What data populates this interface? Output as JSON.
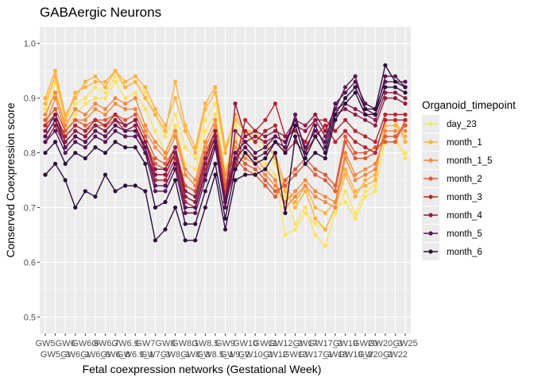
{
  "chart_data": {
    "type": "line",
    "title": "GABAergic Neurons",
    "xlabel": "Fetal coexpression networks (Gestational Week)",
    "ylabel": "Conserved Coexpression score",
    "ylim": [
      0.47,
      1.03
    ],
    "yticks": [
      0.5,
      0.6,
      0.7,
      0.8,
      0.9,
      1.0
    ],
    "ytick_labels": [
      "0.5",
      "0.6",
      "0.7",
      "0.8",
      "0.9",
      "1.0"
    ],
    "grid": true,
    "legend_position": "right",
    "legend_title": "Organoid_timepoint",
    "x_tick_labels": [
      "GW5",
      "GW5_3",
      "GW6",
      "GW6_1",
      "GW6.6",
      "GW6_6",
      "GW6.7",
      "GW6_8",
      "GW6.9",
      "GW6.9_1",
      "GW7",
      "GW7_3",
      "GW8",
      "GW8_1",
      "GW8.1",
      "GW8_3",
      "GW8.5",
      "GW8.5_1",
      "GW9",
      "GW9_2",
      "GW10",
      "GW10_2",
      "GW11",
      "GW12",
      "GW12_2",
      "GW13",
      "GW17",
      "GW17_1",
      "GW17_2",
      "GW18",
      "GW19",
      "GW19_2",
      "GW20",
      "GW20_2",
      "GW20_3",
      "GW22",
      "GW25"
    ],
    "x_tick_rows": [
      "GW5",
      "GW5_3",
      "GW6",
      "GW6_1",
      "GW6.6",
      "GW6_6",
      "GW6.7",
      "GW6_8",
      "GW6.9",
      "GW6.9_1",
      "GW7",
      "GW7_3",
      "GW8",
      "GW8_1",
      "GW8.1",
      "GW8_3",
      "GW8.5",
      "GW8.5_1",
      "GW9",
      "GW9_2",
      "GW10",
      "GW10_2",
      "GW11",
      "GW12",
      "GW12_2",
      "GW13",
      "GW17",
      "GW17_1",
      "GW17_2",
      "GW18",
      "GW19",
      "GW19_2",
      "GW20",
      "GW20_2",
      "GW20_3",
      "GW22",
      "GW25"
    ],
    "series": [
      {
        "name": "day_23",
        "color": "#FDE262",
        "lines": [
          [
            0.88,
            0.94,
            0.86,
            0.89,
            0.9,
            0.92,
            0.91,
            0.94,
            0.92,
            0.93,
            0.91,
            0.87,
            0.83,
            0.87,
            0.81,
            0.79,
            0.86,
            0.89,
            0.8,
            0.85,
            0.83,
            0.82,
            0.8,
            0.78,
            0.72,
            0.67,
            0.7,
            0.65,
            0.63,
            0.69,
            0.73,
            0.69,
            0.73,
            0.74,
            0.82,
            0.82,
            0.8
          ],
          [
            0.86,
            0.93,
            0.84,
            0.87,
            0.89,
            0.9,
            0.9,
            0.93,
            0.9,
            0.91,
            0.88,
            0.84,
            0.8,
            0.85,
            0.78,
            0.77,
            0.84,
            0.87,
            0.77,
            0.83,
            0.81,
            0.79,
            0.78,
            0.76,
            0.65,
            0.66,
            0.69,
            0.67,
            0.66,
            0.7,
            0.71,
            0.68,
            0.72,
            0.73,
            0.83,
            0.83,
            0.79
          ]
        ]
      },
      {
        "name": "month_1",
        "color": "#FDB241",
        "lines": [
          [
            0.9,
            0.95,
            0.87,
            0.9,
            0.93,
            0.94,
            0.92,
            0.95,
            0.93,
            0.94,
            0.92,
            0.88,
            0.85,
            0.9,
            0.84,
            0.8,
            0.88,
            0.91,
            0.8,
            0.87,
            0.84,
            0.83,
            0.82,
            0.79,
            0.73,
            0.7,
            0.73,
            0.68,
            0.66,
            0.7,
            0.76,
            0.72,
            0.75,
            0.76,
            0.85,
            0.85,
            0.83
          ],
          [
            0.89,
            0.94,
            0.86,
            0.91,
            0.92,
            0.93,
            0.93,
            0.95,
            0.92,
            0.93,
            0.9,
            0.87,
            0.84,
            0.93,
            0.85,
            0.81,
            0.89,
            0.92,
            0.81,
            0.86,
            0.84,
            0.84,
            0.81,
            0.8,
            0.74,
            0.71,
            0.74,
            0.7,
            0.69,
            0.71,
            0.77,
            0.73,
            0.74,
            0.75,
            0.86,
            0.86,
            0.82
          ]
        ]
      },
      {
        "name": "month_1_5",
        "color": "#F48A3E",
        "lines": [
          [
            0.87,
            0.91,
            0.85,
            0.88,
            0.87,
            0.89,
            0.88,
            0.9,
            0.89,
            0.9,
            0.85,
            0.82,
            0.8,
            0.84,
            0.77,
            0.75,
            0.82,
            0.86,
            0.76,
            0.82,
            0.8,
            0.79,
            0.77,
            0.75,
            0.7,
            0.72,
            0.74,
            0.72,
            0.71,
            0.7,
            0.79,
            0.75,
            0.76,
            0.77,
            0.84,
            0.84,
            0.84
          ],
          [
            0.85,
            0.9,
            0.84,
            0.86,
            0.86,
            0.88,
            0.87,
            0.89,
            0.88,
            0.88,
            0.84,
            0.81,
            0.79,
            0.83,
            0.76,
            0.74,
            0.81,
            0.85,
            0.75,
            0.81,
            0.79,
            0.78,
            0.76,
            0.74,
            0.71,
            0.73,
            0.75,
            0.73,
            0.72,
            0.71,
            0.8,
            0.76,
            0.77,
            0.78,
            0.83,
            0.83,
            0.85
          ]
        ]
      },
      {
        "name": "month_2",
        "color": "#E05B36",
        "lines": [
          [
            0.86,
            0.88,
            0.84,
            0.86,
            0.85,
            0.86,
            0.86,
            0.87,
            0.86,
            0.87,
            0.83,
            0.79,
            0.78,
            0.81,
            0.74,
            0.73,
            0.8,
            0.84,
            0.74,
            0.8,
            0.78,
            0.77,
            0.75,
            0.73,
            0.74,
            0.76,
            0.78,
            0.76,
            0.75,
            0.73,
            0.82,
            0.79,
            0.79,
            0.8,
            0.83,
            0.83,
            0.85
          ],
          [
            0.84,
            0.87,
            0.83,
            0.85,
            0.84,
            0.85,
            0.85,
            0.86,
            0.85,
            0.86,
            0.82,
            0.78,
            0.77,
            0.8,
            0.73,
            0.72,
            0.79,
            0.83,
            0.73,
            0.79,
            0.77,
            0.76,
            0.74,
            0.72,
            0.75,
            0.77,
            0.79,
            0.77,
            0.76,
            0.74,
            0.83,
            0.8,
            0.8,
            0.81,
            0.82,
            0.82,
            0.86
          ]
        ]
      },
      {
        "name": "month_3",
        "color": "#B8242B",
        "lines": [
          [
            0.85,
            0.87,
            0.83,
            0.85,
            0.84,
            0.86,
            0.85,
            0.87,
            0.85,
            0.86,
            0.82,
            0.76,
            0.76,
            0.8,
            0.72,
            0.71,
            0.78,
            0.83,
            0.72,
            0.78,
            0.86,
            0.84,
            0.86,
            0.89,
            0.83,
            0.84,
            0.82,
            0.86,
            0.86,
            0.84,
            0.86,
            0.84,
            0.83,
            0.82,
            0.87,
            0.87,
            0.87
          ],
          [
            0.83,
            0.86,
            0.82,
            0.84,
            0.83,
            0.85,
            0.84,
            0.86,
            0.84,
            0.85,
            0.81,
            0.75,
            0.75,
            0.79,
            0.71,
            0.7,
            0.77,
            0.82,
            0.71,
            0.77,
            0.84,
            0.82,
            0.84,
            0.85,
            0.8,
            0.82,
            0.8,
            0.83,
            0.85,
            0.82,
            0.84,
            0.82,
            0.81,
            0.8,
            0.86,
            0.86,
            0.86
          ]
        ]
      },
      {
        "name": "month_4",
        "color": "#8C1C44",
        "lines": [
          [
            0.84,
            0.87,
            0.82,
            0.84,
            0.83,
            0.85,
            0.84,
            0.86,
            0.85,
            0.86,
            0.82,
            0.77,
            0.77,
            0.81,
            0.73,
            0.72,
            0.79,
            0.84,
            0.71,
            0.89,
            0.83,
            0.84,
            0.83,
            0.84,
            0.83,
            0.86,
            0.85,
            0.87,
            0.84,
            0.88,
            0.89,
            0.88,
            0.87,
            0.86,
            0.91,
            0.91,
            0.9
          ],
          [
            0.82,
            0.85,
            0.81,
            0.83,
            0.82,
            0.84,
            0.83,
            0.85,
            0.84,
            0.85,
            0.8,
            0.76,
            0.76,
            0.8,
            0.72,
            0.71,
            0.78,
            0.83,
            0.7,
            0.84,
            0.82,
            0.83,
            0.82,
            0.83,
            0.82,
            0.85,
            0.84,
            0.86,
            0.83,
            0.87,
            0.88,
            0.87,
            0.86,
            0.85,
            0.9,
            0.9,
            0.89
          ]
        ]
      },
      {
        "name": "month_5",
        "color": "#5A1557",
        "lines": [
          [
            0.83,
            0.86,
            0.81,
            0.83,
            0.82,
            0.84,
            0.83,
            0.85,
            0.84,
            0.84,
            0.81,
            0.74,
            0.74,
            0.78,
            0.7,
            0.7,
            0.76,
            0.82,
            0.71,
            0.8,
            0.82,
            0.8,
            0.81,
            0.83,
            0.82,
            0.86,
            0.81,
            0.84,
            0.82,
            0.89,
            0.91,
            0.93,
            0.89,
            0.88,
            0.93,
            0.93,
            0.93
          ],
          [
            0.82,
            0.84,
            0.8,
            0.82,
            0.81,
            0.83,
            0.82,
            0.84,
            0.83,
            0.83,
            0.8,
            0.73,
            0.73,
            0.77,
            0.69,
            0.69,
            0.75,
            0.81,
            0.7,
            0.79,
            0.81,
            0.79,
            0.8,
            0.82,
            0.81,
            0.87,
            0.8,
            0.85,
            0.81,
            0.88,
            0.92,
            0.94,
            0.88,
            0.87,
            0.94,
            0.94,
            0.92
          ]
        ]
      },
      {
        "name": "month_6",
        "color": "#2F0F3E",
        "lines": [
          [
            0.8,
            0.82,
            0.78,
            0.8,
            0.79,
            0.81,
            0.8,
            0.82,
            0.81,
            0.81,
            0.78,
            0.7,
            0.71,
            0.75,
            0.67,
            0.67,
            0.73,
            0.78,
            0.68,
            0.77,
            0.8,
            0.78,
            0.79,
            0.82,
            0.8,
            0.85,
            0.79,
            0.83,
            0.8,
            0.87,
            0.9,
            0.92,
            0.88,
            0.88,
            0.96,
            0.93,
            0.92
          ],
          [
            0.76,
            0.78,
            0.75,
            0.7,
            0.73,
            0.72,
            0.76,
            0.73,
            0.74,
            0.74,
            0.73,
            0.64,
            0.66,
            0.7,
            0.64,
            0.64,
            0.7,
            0.76,
            0.66,
            0.75,
            0.76,
            0.76,
            0.77,
            0.8,
            0.69,
            0.83,
            0.78,
            0.8,
            0.79,
            0.86,
            0.89,
            0.91,
            0.87,
            0.87,
            0.92,
            0.92,
            0.91
          ]
        ]
      }
    ]
  }
}
